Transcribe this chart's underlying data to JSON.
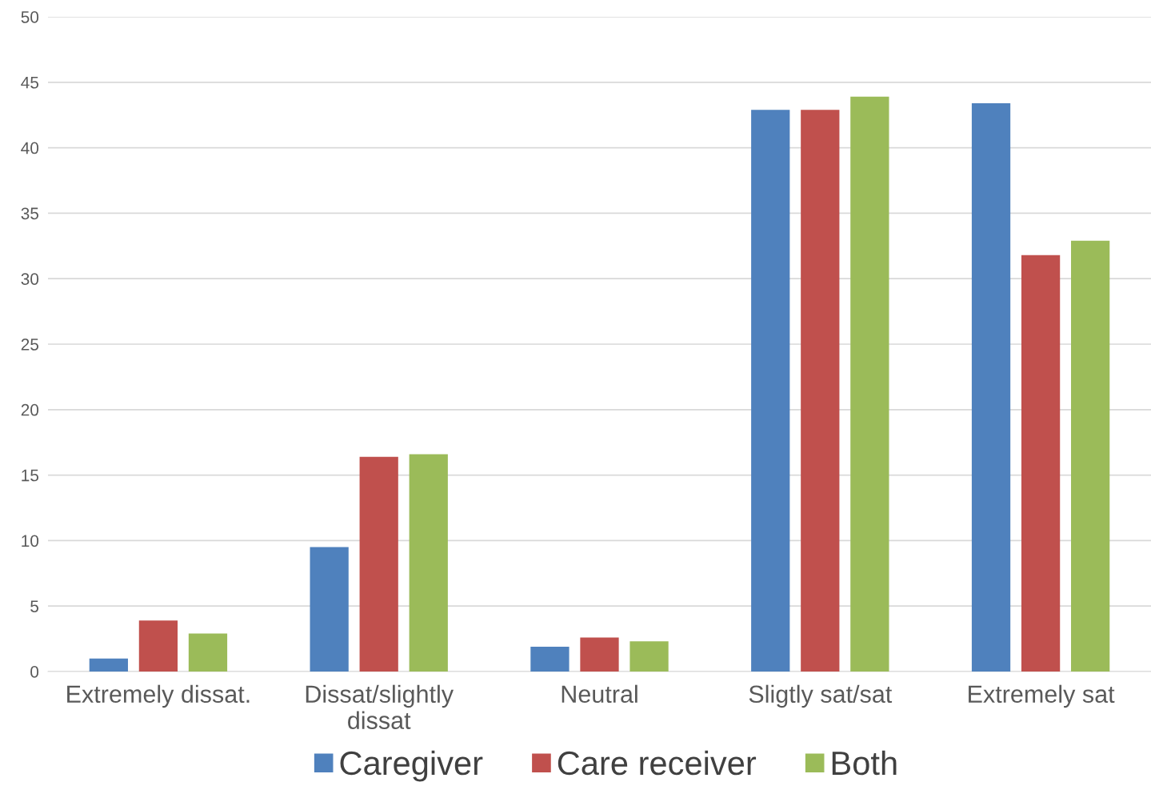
{
  "chart_data": {
    "type": "bar",
    "categories": [
      "Extremely dissat.",
      "Dissat/slightly\ndissat",
      "Neutral",
      "Sligtly sat/sat",
      "Extremely sat"
    ],
    "series": [
      {
        "name": "Caregiver",
        "color": "#4f81bd",
        "values": [
          1.0,
          9.5,
          1.9,
          42.9,
          43.4
        ]
      },
      {
        "name": "Care receiver",
        "color": "#c0504d",
        "values": [
          3.9,
          16.4,
          2.6,
          42.9,
          31.8
        ]
      },
      {
        "name": "Both",
        "color": "#9bbb59",
        "values": [
          2.9,
          16.6,
          2.3,
          43.9,
          32.9
        ]
      }
    ],
    "ylim": [
      0,
      50
    ],
    "yticks": [
      0,
      5,
      10,
      15,
      20,
      25,
      30,
      35,
      40,
      45,
      50
    ],
    "grid": "y",
    "legend": "bottom"
  }
}
